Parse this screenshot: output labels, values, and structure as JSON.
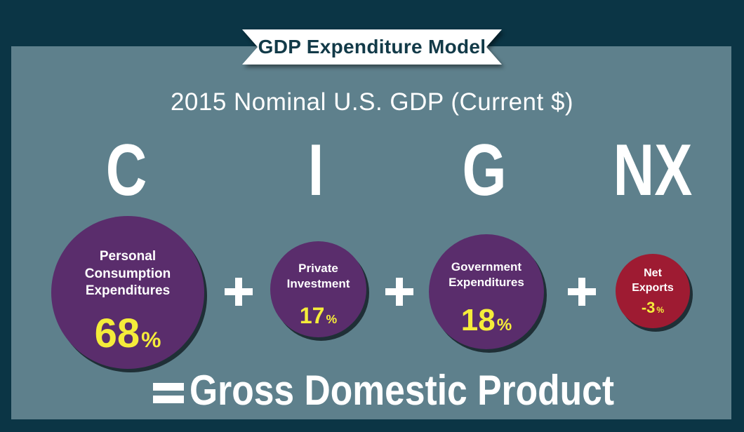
{
  "banner": {
    "title": "GDP Expenditure Model"
  },
  "subtitle": "2015 Nominal U.S. GDP (Current $)",
  "components": [
    {
      "letter": "C",
      "label_lines": [
        "Personal",
        "Consumption",
        "Expenditures"
      ],
      "value": "68",
      "unit": "%",
      "color": "#5a2d6c"
    },
    {
      "letter": "I",
      "label_lines": [
        "Private",
        "Investment"
      ],
      "value": "17",
      "unit": "%",
      "color": "#5a2d6c"
    },
    {
      "letter": "G",
      "label_lines": [
        "Government",
        "Expenditures"
      ],
      "value": "18",
      "unit": "%",
      "color": "#5a2d6c"
    },
    {
      "letter": "NX",
      "label_lines": [
        "Net",
        "Exports"
      ],
      "value": "-3",
      "unit": "%",
      "color": "#9e1b32"
    }
  ],
  "result": "Gross Domestic Product",
  "colors": {
    "background": "#0b3545",
    "panel": "#5e808c",
    "percent": "#f5ec3a",
    "banner": "#ffffff"
  }
}
